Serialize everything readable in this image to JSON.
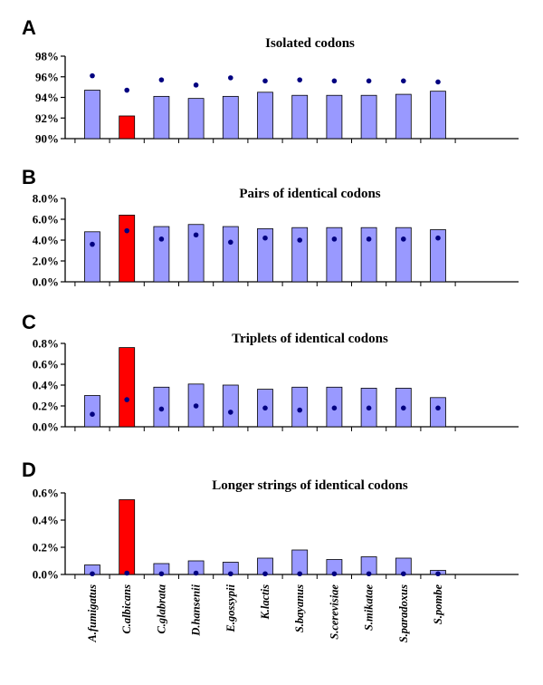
{
  "figure": {
    "categories": [
      "A.fumigatus",
      "C.albicans",
      "C.glabrata",
      "D.hansenii",
      "E.gossypii",
      "K.lactis",
      "S.bayanus",
      "S.cerevisiae",
      "S.mikatae",
      "S.paradoxus",
      "S.pombe"
    ],
    "colors": {
      "bar": "#9999ff",
      "highlight": "#ff0000",
      "marker": "#000080",
      "axis": "#000000"
    },
    "highlight_category": "C.albicans"
  },
  "chart_data": [
    {
      "type": "bar",
      "panel": "A",
      "title": "Isolated codons",
      "ylim": [
        90,
        98
      ],
      "yticks": [
        90,
        92,
        94,
        96,
        98
      ],
      "ytick_labels": [
        "90%",
        "92%",
        "94%",
        "96%",
        "98%"
      ],
      "series": [
        {
          "kind": "bar",
          "values": [
            94.7,
            92.2,
            94.1,
            93.9,
            94.1,
            94.5,
            94.2,
            94.2,
            94.2,
            94.3,
            94.6
          ]
        },
        {
          "kind": "marker",
          "values": [
            96.1,
            94.7,
            95.7,
            95.2,
            95.9,
            95.6,
            95.7,
            95.6,
            95.6,
            95.6,
            95.5
          ]
        }
      ]
    },
    {
      "type": "bar",
      "panel": "B",
      "title": "Pairs of identical codons",
      "ylim": [
        0,
        8
      ],
      "yticks": [
        0,
        2,
        4,
        6,
        8
      ],
      "ytick_labels": [
        "0.0%",
        "2.0%",
        "4.0%",
        "6.0%",
        "8.0%"
      ],
      "series": [
        {
          "kind": "bar",
          "values": [
            4.8,
            6.4,
            5.3,
            5.5,
            5.3,
            5.1,
            5.2,
            5.2,
            5.2,
            5.2,
            5.0
          ]
        },
        {
          "kind": "marker",
          "values": [
            3.6,
            4.9,
            4.1,
            4.5,
            3.8,
            4.2,
            4.0,
            4.1,
            4.1,
            4.1,
            4.2
          ]
        }
      ]
    },
    {
      "type": "bar",
      "panel": "C",
      "title": "Triplets of identical codons",
      "ylim": [
        0,
        0.8
      ],
      "yticks": [
        0,
        0.2,
        0.4,
        0.6,
        0.8
      ],
      "ytick_labels": [
        "0.0%",
        "0.2%",
        "0.4%",
        "0.6%",
        "0.8%"
      ],
      "series": [
        {
          "kind": "bar",
          "values": [
            0.3,
            0.76,
            0.38,
            0.41,
            0.4,
            0.36,
            0.38,
            0.38,
            0.37,
            0.37,
            0.28
          ]
        },
        {
          "kind": "marker",
          "values": [
            0.12,
            0.26,
            0.17,
            0.2,
            0.14,
            0.18,
            0.16,
            0.18,
            0.18,
            0.18,
            0.18
          ]
        }
      ]
    },
    {
      "type": "bar",
      "panel": "D",
      "title": "Longer strings of identical codons",
      "ylim": [
        0,
        0.6
      ],
      "yticks": [
        0,
        0.2,
        0.4,
        0.6
      ],
      "ytick_labels": [
        "0.0%",
        "0.2%",
        "0.4%",
        "0.6%"
      ],
      "series": [
        {
          "kind": "bar",
          "values": [
            0.07,
            0.55,
            0.08,
            0.1,
            0.09,
            0.12,
            0.18,
            0.11,
            0.13,
            0.12,
            0.03
          ]
        },
        {
          "kind": "marker",
          "values": [
            0.005,
            0.01,
            0.005,
            0.01,
            0.005,
            0.005,
            0.005,
            0.005,
            0.005,
            0.005,
            0.005
          ]
        }
      ]
    }
  ]
}
